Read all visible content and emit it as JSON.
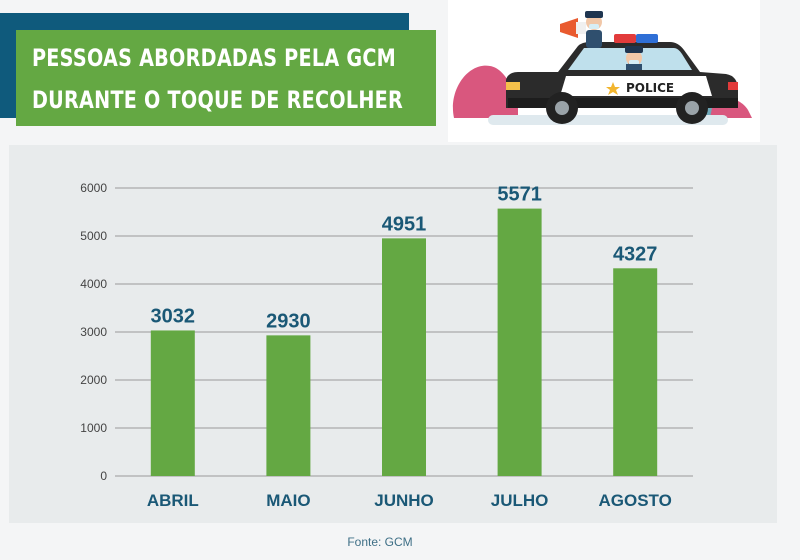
{
  "header": {
    "title_line1": "PESSOAS ABORDADAS PELA GCM",
    "title_line2": "DURANTE O TOQUE DE RECOLHER"
  },
  "illustration": {
    "car_label": "POLICE"
  },
  "colors": {
    "bar": "#64a843",
    "title_bg": "#64a843",
    "title_shadow": "#0f5a7c",
    "label": "#1a5876",
    "panel": "#e8ebec"
  },
  "chart_data": {
    "type": "bar",
    "categories": [
      "ABRIL",
      "MAIO",
      "JUNHO",
      "JULHO",
      "AGOSTO"
    ],
    "values": [
      3032,
      2930,
      4951,
      5571,
      4327
    ],
    "title": "PESSOAS ABORDADAS PELA GCM DURANTE O TOQUE DE RECOLHER",
    "xlabel": "",
    "ylabel": "",
    "ylim": [
      0,
      6000
    ],
    "yticks": [
      0,
      1000,
      2000,
      3000,
      4000,
      5000,
      6000
    ],
    "grid": true,
    "data_labels": true
  },
  "footer": {
    "source": "Fonte: GCM"
  }
}
